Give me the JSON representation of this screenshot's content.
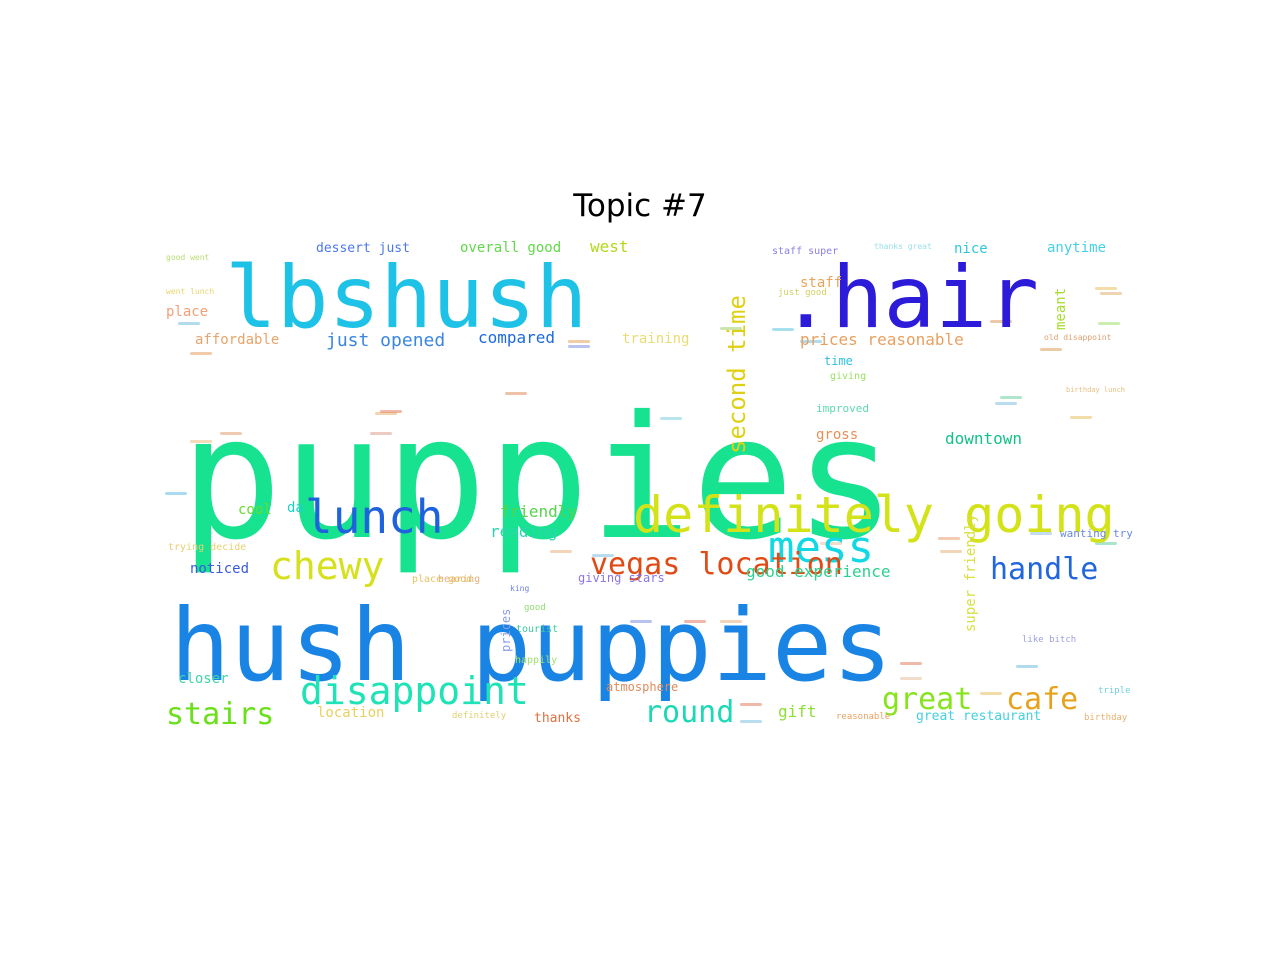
{
  "title": "Topic #7",
  "words": [
    {
      "text": "puppies",
      "color": "#17e28f"
    },
    {
      "text": "hush puppies",
      "color": "#1a84e4"
    },
    {
      "text": "lbshush",
      "color": "#1ec2e6"
    },
    {
      "text": ".hair",
      "color": "#2c1bd8"
    },
    {
      "text": "definitely going",
      "color": "#d4e21a"
    },
    {
      "text": "lunch",
      "color": "#1e62dc"
    },
    {
      "text": "mess",
      "color": "#12d8e4"
    },
    {
      "text": "chewy",
      "color": "#d6e01c"
    },
    {
      "text": "vegas location",
      "color": "#e04a14"
    },
    {
      "text": "disappoint",
      "color": "#1fe2b6"
    },
    {
      "text": "handle",
      "color": "#2266dd"
    },
    {
      "text": "great",
      "color": "#86e41c"
    },
    {
      "text": "cafe",
      "color": "#e6a21c"
    },
    {
      "text": "round",
      "color": "#1cd8b4"
    },
    {
      "text": "stairs",
      "color": "#6ae018"
    },
    {
      "text": "second time",
      "color": "#e0d014"
    },
    {
      "text": "downtown",
      "color": "#14c08a"
    },
    {
      "text": "good experience",
      "color": "#2ad28e"
    },
    {
      "text": "prices reasonable",
      "color": "#e8a060"
    },
    {
      "text": "just opened",
      "color": "#3a86e0"
    },
    {
      "text": "compared",
      "color": "#1c6ade"
    },
    {
      "text": "affordable",
      "color": "#e8a46a"
    },
    {
      "text": "place",
      "color": "#f0a078"
    },
    {
      "text": "overall good",
      "color": "#62d84a"
    },
    {
      "text": "dessert just",
      "color": "#4c78e6"
    },
    {
      "text": "west",
      "color": "#b4d81a"
    },
    {
      "text": "training",
      "color": "#e8dc74"
    },
    {
      "text": "nice",
      "color": "#2ec8dc"
    },
    {
      "text": "anytime",
      "color": "#46d0e6"
    },
    {
      "text": "staff",
      "color": "#e8a45c"
    },
    {
      "text": "meant",
      "color": "#a6dc2a"
    },
    {
      "text": "friendly",
      "color": "#56d44a"
    },
    {
      "text": "reading",
      "color": "#2ad6ae"
    },
    {
      "text": "cool",
      "color": "#68dc2e"
    },
    {
      "text": "da",
      "color": "#1ad2c6"
    },
    {
      "text": "noticed",
      "color": "#3a5ade"
    },
    {
      "text": "closer",
      "color": "#40d4a8"
    },
    {
      "text": "location",
      "color": "#e8d060"
    },
    {
      "text": "gift",
      "color": "#8ede34"
    },
    {
      "text": "thanks",
      "color": "#e07040"
    },
    {
      "text": "atmosphere",
      "color": "#e08a5a"
    },
    {
      "text": "great restaurant",
      "color": "#46d0e0"
    },
    {
      "text": "super friendly",
      "color": "#d8e040"
    },
    {
      "text": "wanting try",
      "color": "#6a88e2"
    },
    {
      "text": "prices",
      "color": "#8a9cea"
    },
    {
      "text": "giving stars",
      "color": "#8a74e8"
    },
    {
      "text": "time",
      "color": "#30c0e0"
    },
    {
      "text": "gross",
      "color": "#e89058"
    },
    {
      "text": "improved",
      "color": "#60d8b0"
    },
    {
      "text": "giving",
      "color": "#9ae060"
    },
    {
      "text": "staff super",
      "color": "#8a80e6"
    },
    {
      "text": "thanks great",
      "color": "#9ae0ea"
    },
    {
      "text": "just good",
      "color": "#d0d060"
    },
    {
      "text": "good went",
      "color": "#b8e070"
    },
    {
      "text": "went lunch",
      "color": "#e8d670"
    },
    {
      "text": "trying decide",
      "color": "#e8d070"
    },
    {
      "text": "happily",
      "color": "#a0e070"
    },
    {
      "text": "tourist",
      "color": "#40c8a0"
    },
    {
      "text": "good",
      "color": "#90dc70"
    },
    {
      "text": "king",
      "color": "#6a80e6"
    },
    {
      "text": "hearing",
      "color": "#e8b080"
    },
    {
      "text": "place good",
      "color": "#e8c060"
    },
    {
      "text": "definitely",
      "color": "#e0d070"
    },
    {
      "text": "triple",
      "color": "#70d0e0"
    },
    {
      "text": "birthday",
      "color": "#e8b070"
    },
    {
      "text": "reasonable",
      "color": "#e8a060"
    },
    {
      "text": "old disappoint",
      "color": "#e0a070"
    },
    {
      "text": "birthday lunch",
      "color": "#e8c080"
    },
    {
      "text": "like bitch",
      "color": "#a0a0e0"
    }
  ]
}
